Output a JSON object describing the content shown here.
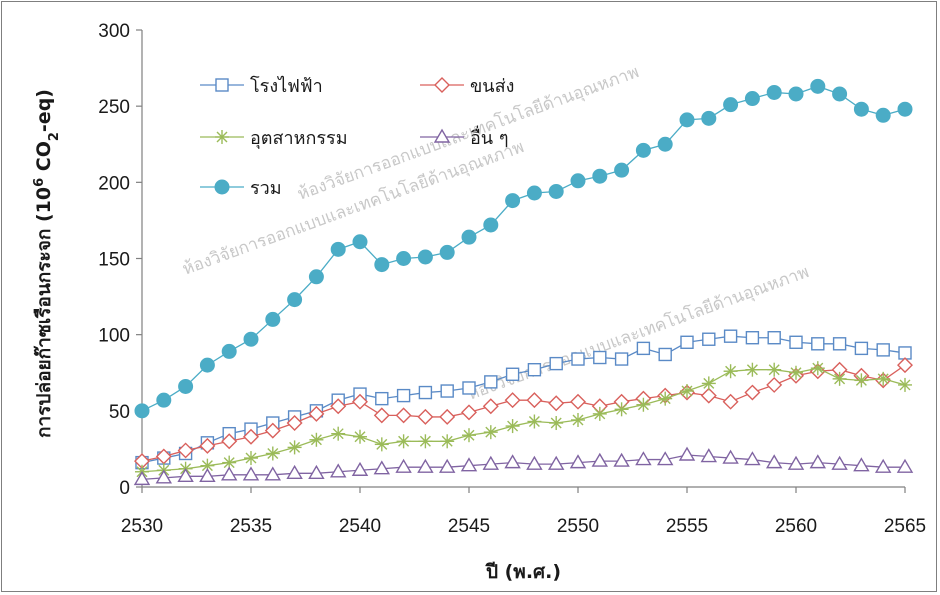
{
  "chart_data": {
    "type": "line",
    "title": "",
    "xlabel": "ปี (พ.ศ.)",
    "ylabel_prefix": "การปล่อยก๊าซเรือนกระจก (10",
    "ylabel_sup": "6",
    "ylabel_mid": " CO",
    "ylabel_sub": "2",
    "ylabel_suffix": "-eq)",
    "xlim": [
      2530,
      2565
    ],
    "ylim": [
      0,
      300
    ],
    "x_ticks": [
      "2530",
      "2535",
      "2540",
      "2545",
      "2550",
      "2555",
      "2560",
      "2565"
    ],
    "y_ticks": [
      "0",
      "50",
      "100",
      "150",
      "200",
      "250",
      "300"
    ],
    "grid": false,
    "legend_position": "top-left",
    "watermarks": [
      "ห้องวิจัยการออกแบบและเทคโนโลยีด้านอุณหภาพ",
      "ห้องวิจัยการออกแบบและเทคโนโลยีด้านอุณหภาพ",
      "ห้องวิจัยการออกแบบและเทคโนโลยีด้านอุณหภาพ"
    ],
    "x": [
      2530,
      2531,
      2532,
      2533,
      2534,
      2535,
      2536,
      2537,
      2538,
      2539,
      2540,
      2541,
      2542,
      2543,
      2544,
      2545,
      2546,
      2547,
      2548,
      2549,
      2550,
      2551,
      2552,
      2553,
      2554,
      2555,
      2556,
      2557,
      2558,
      2559,
      2560,
      2561,
      2562,
      2563,
      2564,
      2565
    ],
    "series": [
      {
        "name": "โรงไฟฟ้า",
        "marker": "square",
        "color": "#5a8ac6",
        "values": [
          16,
          19,
          22,
          29,
          35,
          38,
          42,
          46,
          50,
          57,
          61,
          58,
          60,
          62,
          63,
          65,
          69,
          74,
          77,
          81,
          84,
          85,
          84,
          91,
          87,
          95,
          97,
          99,
          98,
          98,
          95,
          94,
          94,
          91,
          90,
          88
        ]
      },
      {
        "name": "ขนส่ง",
        "marker": "diamond",
        "color": "#d9605c",
        "values": [
          17,
          20,
          24,
          27,
          30,
          33,
          37,
          42,
          48,
          53,
          56,
          47,
          47,
          46,
          46,
          49,
          53,
          57,
          57,
          55,
          56,
          53,
          56,
          58,
          60,
          62,
          60,
          56,
          62,
          67,
          73,
          76,
          77,
          73,
          70,
          80
        ]
      },
      {
        "name": "อุตสาหกรรม",
        "marker": "asterisk",
        "color": "#9bbb59",
        "values": [
          10,
          11,
          12,
          14,
          16,
          19,
          22,
          26,
          31,
          35,
          33,
          28,
          30,
          30,
          30,
          34,
          36,
          40,
          43,
          42,
          44,
          48,
          51,
          54,
          58,
          63,
          68,
          76,
          77,
          77,
          75,
          78,
          71,
          70,
          71,
          67
        ]
      },
      {
        "name": "อื่น ๆ",
        "marker": "triangle",
        "color": "#8064a2",
        "values": [
          5,
          6,
          7,
          7,
          8,
          8,
          8,
          9,
          9,
          10,
          11,
          12,
          13,
          13,
          13,
          14,
          15,
          16,
          15,
          15,
          16,
          17,
          17,
          18,
          18,
          21,
          20,
          19,
          18,
          16,
          15,
          16,
          15,
          14,
          13,
          13
        ]
      },
      {
        "name": "รวม",
        "marker": "circle",
        "color": "#4bacc6",
        "values": [
          50,
          57,
          66,
          80,
          89,
          97,
          110,
          123,
          138,
          156,
          161,
          146,
          150,
          151,
          154,
          164,
          172,
          188,
          193,
          194,
          201,
          204,
          208,
          221,
          225,
          241,
          242,
          251,
          255,
          259,
          258,
          263,
          258,
          248,
          244,
          248
        ]
      }
    ]
  }
}
